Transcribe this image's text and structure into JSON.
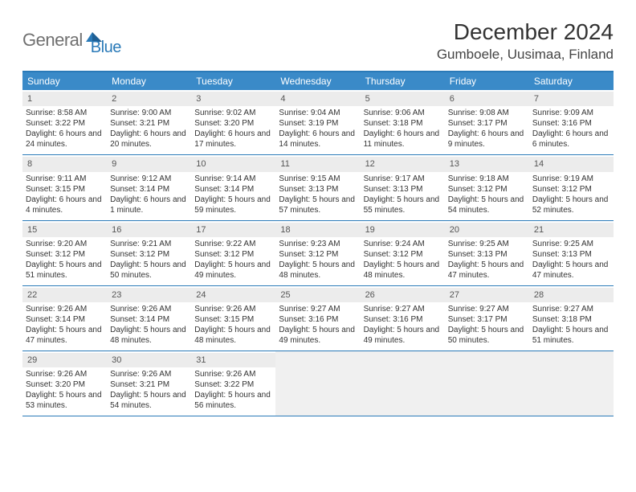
{
  "brand": {
    "text1": "General",
    "text2": "Blue"
  },
  "title": "December 2024",
  "location": "Gumboele, Uusimaa, Finland",
  "colors": {
    "header_bar": "#3a8ac8",
    "border": "#2a7ab8",
    "daynum_bg": "#ececec",
    "empty_bg": "#f0f0f0"
  },
  "days_of_week": [
    "Sunday",
    "Monday",
    "Tuesday",
    "Wednesday",
    "Thursday",
    "Friday",
    "Saturday"
  ],
  "weeks": [
    [
      {
        "n": "1",
        "sr": "Sunrise: 8:58 AM",
        "ss": "Sunset: 3:22 PM",
        "dl": "Daylight: 6 hours and 24 minutes."
      },
      {
        "n": "2",
        "sr": "Sunrise: 9:00 AM",
        "ss": "Sunset: 3:21 PM",
        "dl": "Daylight: 6 hours and 20 minutes."
      },
      {
        "n": "3",
        "sr": "Sunrise: 9:02 AM",
        "ss": "Sunset: 3:20 PM",
        "dl": "Daylight: 6 hours and 17 minutes."
      },
      {
        "n": "4",
        "sr": "Sunrise: 9:04 AM",
        "ss": "Sunset: 3:19 PM",
        "dl": "Daylight: 6 hours and 14 minutes."
      },
      {
        "n": "5",
        "sr": "Sunrise: 9:06 AM",
        "ss": "Sunset: 3:18 PM",
        "dl": "Daylight: 6 hours and 11 minutes."
      },
      {
        "n": "6",
        "sr": "Sunrise: 9:08 AM",
        "ss": "Sunset: 3:17 PM",
        "dl": "Daylight: 6 hours and 9 minutes."
      },
      {
        "n": "7",
        "sr": "Sunrise: 9:09 AM",
        "ss": "Sunset: 3:16 PM",
        "dl": "Daylight: 6 hours and 6 minutes."
      }
    ],
    [
      {
        "n": "8",
        "sr": "Sunrise: 9:11 AM",
        "ss": "Sunset: 3:15 PM",
        "dl": "Daylight: 6 hours and 4 minutes."
      },
      {
        "n": "9",
        "sr": "Sunrise: 9:12 AM",
        "ss": "Sunset: 3:14 PM",
        "dl": "Daylight: 6 hours and 1 minute."
      },
      {
        "n": "10",
        "sr": "Sunrise: 9:14 AM",
        "ss": "Sunset: 3:14 PM",
        "dl": "Daylight: 5 hours and 59 minutes."
      },
      {
        "n": "11",
        "sr": "Sunrise: 9:15 AM",
        "ss": "Sunset: 3:13 PM",
        "dl": "Daylight: 5 hours and 57 minutes."
      },
      {
        "n": "12",
        "sr": "Sunrise: 9:17 AM",
        "ss": "Sunset: 3:13 PM",
        "dl": "Daylight: 5 hours and 55 minutes."
      },
      {
        "n": "13",
        "sr": "Sunrise: 9:18 AM",
        "ss": "Sunset: 3:12 PM",
        "dl": "Daylight: 5 hours and 54 minutes."
      },
      {
        "n": "14",
        "sr": "Sunrise: 9:19 AM",
        "ss": "Sunset: 3:12 PM",
        "dl": "Daylight: 5 hours and 52 minutes."
      }
    ],
    [
      {
        "n": "15",
        "sr": "Sunrise: 9:20 AM",
        "ss": "Sunset: 3:12 PM",
        "dl": "Daylight: 5 hours and 51 minutes."
      },
      {
        "n": "16",
        "sr": "Sunrise: 9:21 AM",
        "ss": "Sunset: 3:12 PM",
        "dl": "Daylight: 5 hours and 50 minutes."
      },
      {
        "n": "17",
        "sr": "Sunrise: 9:22 AM",
        "ss": "Sunset: 3:12 PM",
        "dl": "Daylight: 5 hours and 49 minutes."
      },
      {
        "n": "18",
        "sr": "Sunrise: 9:23 AM",
        "ss": "Sunset: 3:12 PM",
        "dl": "Daylight: 5 hours and 48 minutes."
      },
      {
        "n": "19",
        "sr": "Sunrise: 9:24 AM",
        "ss": "Sunset: 3:12 PM",
        "dl": "Daylight: 5 hours and 48 minutes."
      },
      {
        "n": "20",
        "sr": "Sunrise: 9:25 AM",
        "ss": "Sunset: 3:13 PM",
        "dl": "Daylight: 5 hours and 47 minutes."
      },
      {
        "n": "21",
        "sr": "Sunrise: 9:25 AM",
        "ss": "Sunset: 3:13 PM",
        "dl": "Daylight: 5 hours and 47 minutes."
      }
    ],
    [
      {
        "n": "22",
        "sr": "Sunrise: 9:26 AM",
        "ss": "Sunset: 3:14 PM",
        "dl": "Daylight: 5 hours and 47 minutes."
      },
      {
        "n": "23",
        "sr": "Sunrise: 9:26 AM",
        "ss": "Sunset: 3:14 PM",
        "dl": "Daylight: 5 hours and 48 minutes."
      },
      {
        "n": "24",
        "sr": "Sunrise: 9:26 AM",
        "ss": "Sunset: 3:15 PM",
        "dl": "Daylight: 5 hours and 48 minutes."
      },
      {
        "n": "25",
        "sr": "Sunrise: 9:27 AM",
        "ss": "Sunset: 3:16 PM",
        "dl": "Daylight: 5 hours and 49 minutes."
      },
      {
        "n": "26",
        "sr": "Sunrise: 9:27 AM",
        "ss": "Sunset: 3:16 PM",
        "dl": "Daylight: 5 hours and 49 minutes."
      },
      {
        "n": "27",
        "sr": "Sunrise: 9:27 AM",
        "ss": "Sunset: 3:17 PM",
        "dl": "Daylight: 5 hours and 50 minutes."
      },
      {
        "n": "28",
        "sr": "Sunrise: 9:27 AM",
        "ss": "Sunset: 3:18 PM",
        "dl": "Daylight: 5 hours and 51 minutes."
      }
    ],
    [
      {
        "n": "29",
        "sr": "Sunrise: 9:26 AM",
        "ss": "Sunset: 3:20 PM",
        "dl": "Daylight: 5 hours and 53 minutes."
      },
      {
        "n": "30",
        "sr": "Sunrise: 9:26 AM",
        "ss": "Sunset: 3:21 PM",
        "dl": "Daylight: 5 hours and 54 minutes."
      },
      {
        "n": "31",
        "sr": "Sunrise: 9:26 AM",
        "ss": "Sunset: 3:22 PM",
        "dl": "Daylight: 5 hours and 56 minutes."
      },
      null,
      null,
      null,
      null
    ]
  ]
}
